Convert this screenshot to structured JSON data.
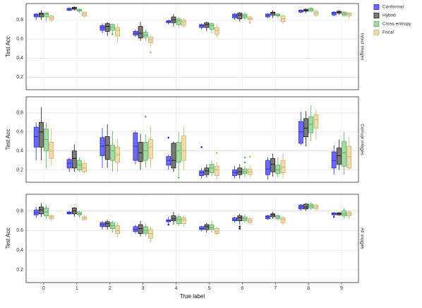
{
  "chart_data": [
    {
      "type": "box",
      "ylabel": "Test Acc",
      "strip": "Intact images",
      "ylim": [
        0.07,
        0.97
      ],
      "yticks": [
        0.2,
        0.4,
        0.6,
        0.8
      ],
      "grid": true,
      "legend": "right outside",
      "series": [
        {
          "name": "Conformal",
          "color": "#6b6bff",
          "edge": "#2a2ad0",
          "low": [
            0.8,
            0.89,
            0.66,
            0.62,
            0.75,
            0.7,
            0.8,
            0.82,
            0.87,
            0.84
          ],
          "q1": [
            0.83,
            0.9,
            0.69,
            0.64,
            0.77,
            0.72,
            0.82,
            0.83,
            0.88,
            0.85
          ],
          "median": [
            0.85,
            0.91,
            0.72,
            0.66,
            0.78,
            0.74,
            0.84,
            0.85,
            0.89,
            0.87
          ],
          "q3": [
            0.86,
            0.92,
            0.74,
            0.68,
            0.79,
            0.75,
            0.86,
            0.86,
            0.9,
            0.88
          ],
          "high": [
            0.87,
            0.93,
            0.76,
            0.7,
            0.8,
            0.76,
            0.87,
            0.87,
            0.91,
            0.89
          ],
          "outliers": [
            [],
            [],
            [],
            [],
            [],
            [],
            [],
            [],
            [],
            []
          ]
        },
        {
          "name": "Hybrid",
          "color": "#7a7a7a",
          "edge": "#1a1a1a",
          "low": [
            0.8,
            0.9,
            0.63,
            0.58,
            0.73,
            0.68,
            0.78,
            0.82,
            0.87,
            0.85
          ],
          "q1": [
            0.83,
            0.91,
            0.68,
            0.61,
            0.77,
            0.72,
            0.81,
            0.85,
            0.89,
            0.87
          ],
          "median": [
            0.86,
            0.92,
            0.73,
            0.66,
            0.8,
            0.75,
            0.85,
            0.87,
            0.9,
            0.88
          ],
          "q3": [
            0.87,
            0.93,
            0.76,
            0.73,
            0.83,
            0.77,
            0.87,
            0.88,
            0.91,
            0.89
          ],
          "high": [
            0.9,
            0.94,
            0.78,
            0.78,
            0.86,
            0.78,
            0.88,
            0.9,
            0.92,
            0.9
          ],
          "outliers": [
            [],
            [],
            [],
            [],
            [],
            [],
            [],
            [],
            [],
            []
          ]
        },
        {
          "name": "Cross entropy",
          "color": "#a3dba3",
          "edge": "#5fae5f",
          "low": [
            0.79,
            0.87,
            0.66,
            0.58,
            0.72,
            0.66,
            0.8,
            0.82,
            0.88,
            0.83
          ],
          "q1": [
            0.83,
            0.89,
            0.69,
            0.62,
            0.75,
            0.7,
            0.82,
            0.84,
            0.89,
            0.85
          ],
          "median": [
            0.86,
            0.9,
            0.72,
            0.64,
            0.79,
            0.74,
            0.84,
            0.85,
            0.91,
            0.86
          ],
          "q3": [
            0.87,
            0.91,
            0.75,
            0.67,
            0.81,
            0.76,
            0.86,
            0.86,
            0.92,
            0.88
          ],
          "high": [
            0.88,
            0.92,
            0.76,
            0.7,
            0.83,
            0.77,
            0.88,
            0.87,
            0.93,
            0.89
          ],
          "outliers": [
            [],
            [],
            [
              0.65
            ],
            [],
            [],
            [],
            [],
            [],
            [],
            []
          ]
        },
        {
          "name": "Focal",
          "color": "#ecdcae",
          "edge": "#c9b272",
          "low": [
            0.78,
            0.82,
            0.56,
            0.52,
            0.72,
            0.62,
            0.78,
            0.75,
            0.83,
            0.81
          ],
          "q1": [
            0.8,
            0.84,
            0.63,
            0.56,
            0.74,
            0.65,
            0.8,
            0.78,
            0.85,
            0.84
          ],
          "median": [
            0.82,
            0.86,
            0.69,
            0.59,
            0.78,
            0.69,
            0.81,
            0.81,
            0.87,
            0.86
          ],
          "q3": [
            0.84,
            0.88,
            0.72,
            0.62,
            0.8,
            0.72,
            0.83,
            0.84,
            0.89,
            0.87
          ],
          "high": [
            0.85,
            0.89,
            0.76,
            0.64,
            0.82,
            0.75,
            0.84,
            0.86,
            0.91,
            0.88
          ],
          "outliers": [
            [],
            [],
            [],
            [
              0.46
            ],
            [],
            [],
            [
              0.77
            ],
            [],
            [],
            []
          ]
        }
      ]
    },
    {
      "type": "box",
      "ylabel": "Test Acc",
      "strip": "Corrupt images",
      "ylim": [
        0.07,
        0.97
      ],
      "yticks": [
        0.2,
        0.4,
        0.6,
        0.8
      ],
      "grid": true,
      "series": [
        {
          "color": "#6b6bff",
          "edge": "#2a2ad0",
          "low": [
            0.3,
            0.18,
            0.22,
            0.26,
            0.2,
            0.11,
            0.11,
            0.1,
            0.46,
            0.15
          ],
          "q1": [
            0.44,
            0.22,
            0.35,
            0.3,
            0.25,
            0.14,
            0.14,
            0.15,
            0.48,
            0.22
          ],
          "median": [
            0.55,
            0.27,
            0.45,
            0.45,
            0.3,
            0.17,
            0.17,
            0.21,
            0.6,
            0.3
          ],
          "q3": [
            0.65,
            0.31,
            0.54,
            0.59,
            0.34,
            0.19,
            0.2,
            0.3,
            0.71,
            0.39
          ],
          "high": [
            0.7,
            0.33,
            0.64,
            0.61,
            0.36,
            0.22,
            0.24,
            0.33,
            0.81,
            0.46
          ],
          "outliers": [
            [],
            [],
            [],
            [],
            [
              0.54
            ],
            [
              0.44
            ],
            [],
            [],
            [],
            []
          ]
        },
        {
          "color": "#7a7a7a",
          "edge": "#1a1a1a",
          "low": [
            0.3,
            0.18,
            0.22,
            0.2,
            0.18,
            0.12,
            0.11,
            0.13,
            0.45,
            0.2
          ],
          "q1": [
            0.44,
            0.22,
            0.31,
            0.29,
            0.22,
            0.15,
            0.15,
            0.18,
            0.55,
            0.26
          ],
          "median": [
            0.6,
            0.32,
            0.46,
            0.38,
            0.3,
            0.19,
            0.18,
            0.26,
            0.64,
            0.35
          ],
          "q3": [
            0.7,
            0.4,
            0.55,
            0.49,
            0.48,
            0.22,
            0.22,
            0.32,
            0.74,
            0.43
          ],
          "high": [
            0.86,
            0.47,
            0.68,
            0.58,
            0.5,
            0.26,
            0.26,
            0.37,
            0.82,
            0.52
          ],
          "outliers": [
            [],
            [],
            [],
            [],
            [],
            [],
            [],
            [],
            [],
            []
          ]
        },
        {
          "color": "#a3dba3",
          "edge": "#5fae5f",
          "low": [
            0.22,
            0.18,
            0.18,
            0.22,
            0.14,
            0.13,
            0.12,
            0.12,
            0.5,
            0.15
          ],
          "q1": [
            0.4,
            0.2,
            0.3,
            0.3,
            0.28,
            0.17,
            0.16,
            0.16,
            0.59,
            0.24
          ],
          "median": [
            0.52,
            0.25,
            0.4,
            0.4,
            0.4,
            0.22,
            0.18,
            0.2,
            0.68,
            0.38
          ],
          "q3": [
            0.63,
            0.3,
            0.46,
            0.49,
            0.49,
            0.26,
            0.21,
            0.25,
            0.76,
            0.5
          ],
          "high": [
            0.7,
            0.33,
            0.61,
            0.58,
            0.6,
            0.3,
            0.24,
            0.33,
            0.88,
            0.6
          ],
          "outliers": [
            [],
            [],
            [],
            [
              0.76
            ],
            [
              0.12
            ],
            [],
            [
              0.33,
              0.28
            ],
            [],
            [],
            []
          ]
        },
        {
          "color": "#ecdcae",
          "edge": "#c9b272",
          "low": [
            0.24,
            0.16,
            0.18,
            0.22,
            0.2,
            0.1,
            0.11,
            0.11,
            0.52,
            0.2
          ],
          "q1": [
            0.32,
            0.18,
            0.28,
            0.32,
            0.3,
            0.14,
            0.15,
            0.17,
            0.64,
            0.22
          ],
          "median": [
            0.4,
            0.22,
            0.36,
            0.44,
            0.4,
            0.2,
            0.18,
            0.23,
            0.73,
            0.34
          ],
          "q3": [
            0.49,
            0.27,
            0.44,
            0.52,
            0.56,
            0.24,
            0.21,
            0.3,
            0.78,
            0.45
          ],
          "high": [
            0.64,
            0.3,
            0.53,
            0.66,
            0.66,
            0.28,
            0.25,
            0.38,
            0.84,
            0.55
          ],
          "outliers": [
            [],
            [],
            [],
            [],
            [],
            [
              0.38
            ],
            [
              0.34
            ],
            [],
            [],
            []
          ]
        }
      ]
    },
    {
      "type": "box",
      "ylabel": "Test Acc",
      "strip": "All images",
      "xlabel": "True label",
      "ylim": [
        0.07,
        0.97
      ],
      "yticks": [
        0.2,
        0.4,
        0.6,
        0.8
      ],
      "grid": true,
      "categories": [
        "0",
        "1",
        "2",
        "3",
        "4",
        "5",
        "6",
        "7",
        "8",
        "9"
      ],
      "series": [
        {
          "color": "#6b6bff",
          "edge": "#2a2ad0",
          "low": [
            0.73,
            0.76,
            0.61,
            0.57,
            0.67,
            0.59,
            0.68,
            0.71,
            0.8,
            0.75
          ],
          "q1": [
            0.76,
            0.77,
            0.64,
            0.59,
            0.69,
            0.61,
            0.7,
            0.72,
            0.82,
            0.76
          ],
          "median": [
            0.78,
            0.78,
            0.66,
            0.61,
            0.7,
            0.62,
            0.71,
            0.74,
            0.84,
            0.77
          ],
          "q3": [
            0.81,
            0.79,
            0.68,
            0.64,
            0.71,
            0.64,
            0.73,
            0.75,
            0.86,
            0.78
          ],
          "high": [
            0.84,
            0.8,
            0.7,
            0.66,
            0.74,
            0.65,
            0.74,
            0.76,
            0.87,
            0.79
          ],
          "outliers": [
            [],
            [],
            [],
            [],
            [
              0.66
            ],
            [],
            [],
            [],
            [],
            [
              0.74
            ]
          ]
        },
        {
          "color": "#7a7a7a",
          "edge": "#1a1a1a",
          "low": [
            0.74,
            0.74,
            0.61,
            0.54,
            0.66,
            0.58,
            0.66,
            0.72,
            0.8,
            0.75
          ],
          "q1": [
            0.77,
            0.77,
            0.64,
            0.57,
            0.7,
            0.61,
            0.7,
            0.74,
            0.82,
            0.76
          ],
          "median": [
            0.81,
            0.8,
            0.67,
            0.62,
            0.72,
            0.64,
            0.73,
            0.76,
            0.84,
            0.77
          ],
          "q3": [
            0.84,
            0.83,
            0.69,
            0.66,
            0.75,
            0.66,
            0.75,
            0.77,
            0.87,
            0.78
          ],
          "high": [
            0.88,
            0.84,
            0.71,
            0.7,
            0.79,
            0.68,
            0.77,
            0.79,
            0.88,
            0.79
          ],
          "outliers": [
            [],
            [],
            [],
            [],
            [],
            [],
            [
              0.64,
              0.62
            ],
            [],
            [],
            []
          ]
        },
        {
          "color": "#a3dba3",
          "edge": "#5fae5f",
          "low": [
            0.72,
            0.73,
            0.58,
            0.54,
            0.65,
            0.58,
            0.68,
            0.7,
            0.81,
            0.72
          ],
          "q1": [
            0.75,
            0.76,
            0.62,
            0.57,
            0.67,
            0.61,
            0.7,
            0.72,
            0.83,
            0.75
          ],
          "median": [
            0.79,
            0.77,
            0.65,
            0.6,
            0.71,
            0.63,
            0.72,
            0.74,
            0.85,
            0.77
          ],
          "q3": [
            0.83,
            0.79,
            0.68,
            0.64,
            0.74,
            0.66,
            0.74,
            0.75,
            0.87,
            0.8
          ],
          "high": [
            0.86,
            0.8,
            0.7,
            0.67,
            0.77,
            0.7,
            0.77,
            0.77,
            0.89,
            0.83
          ],
          "outliers": [
            [],
            [],
            [],
            [],
            [],
            [],
            [],
            [],
            [],
            []
          ]
        },
        {
          "color": "#ecdcae",
          "edge": "#c9b272",
          "low": [
            0.7,
            0.7,
            0.53,
            0.48,
            0.64,
            0.55,
            0.66,
            0.66,
            0.8,
            0.72
          ],
          "q1": [
            0.72,
            0.71,
            0.57,
            0.52,
            0.67,
            0.57,
            0.68,
            0.68,
            0.82,
            0.75
          ],
          "median": [
            0.74,
            0.73,
            0.6,
            0.57,
            0.71,
            0.59,
            0.7,
            0.71,
            0.84,
            0.77
          ],
          "q3": [
            0.75,
            0.74,
            0.65,
            0.61,
            0.73,
            0.62,
            0.72,
            0.73,
            0.86,
            0.79
          ],
          "high": [
            0.77,
            0.76,
            0.68,
            0.64,
            0.75,
            0.64,
            0.74,
            0.75,
            0.88,
            0.81
          ],
          "outliers": [
            [],
            [],
            [],
            [],
            [],
            [],
            [],
            [],
            [],
            []
          ]
        }
      ]
    }
  ]
}
